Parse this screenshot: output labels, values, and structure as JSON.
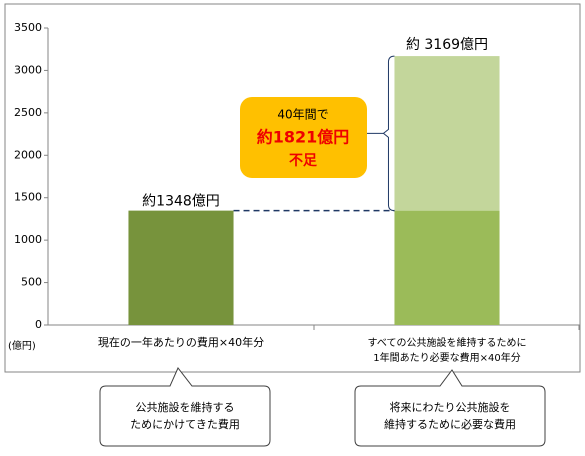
{
  "chart_data": {
    "type": "stacked-bar",
    "categories": [
      "現在の一年あたりの費用×40年分",
      [
        "すべての公共施設を維持するために",
        "1年間あたり必要な費用×40年分"
      ]
    ],
    "series": [
      {
        "colors": [
          "#77933c",
          "#9bbb59"
        ],
        "values": [
          1348,
          1348
        ],
        "value_labels": [
          "約1348億円",
          null
        ]
      },
      {
        "colors": [
          null,
          "#c3d69b"
        ],
        "values": [
          null,
          1821
        ]
      }
    ],
    "ylim": [
      0,
      3500
    ],
    "yticks": [
      0,
      500,
      1000,
      1500,
      2000,
      2500,
      3000,
      3500
    ],
    "y_unit": "(億円)",
    "grid": false,
    "annotations": {
      "total": "約 3169億円",
      "shortfall": [
        "40年間で",
        "約1821億円",
        "不足"
      ],
      "bubbles": [
        [
          "公共施設を維持する",
          "ためにかけてきた費用"
        ],
        [
          "将来にわたり公共施設を",
          "維持するために必要な費用"
        ]
      ]
    }
  }
}
